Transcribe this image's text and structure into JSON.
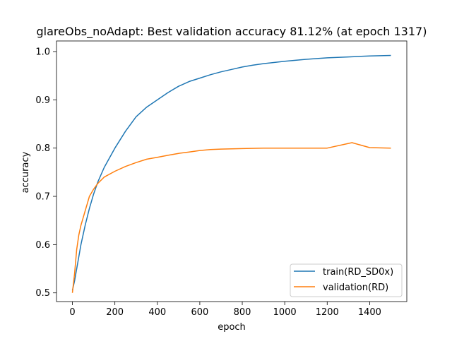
{
  "chart_data": {
    "type": "line",
    "title": "glareObs_noAdapt: Best validation accuracy 81.12% (at epoch 1317)",
    "xlabel": "epoch",
    "ylabel": "accuracy",
    "xlim": [
      -75,
      1575
    ],
    "ylim": [
      0.482,
      1.022
    ],
    "xticks": [
      0,
      200,
      400,
      600,
      800,
      1000,
      1200,
      1400
    ],
    "xtick_labels": [
      "0",
      "200",
      "400",
      "600",
      "800",
      "1000",
      "1200",
      "1400"
    ],
    "yticks": [
      0.5,
      0.6,
      0.7,
      0.8,
      0.9,
      1.0
    ],
    "ytick_labels": [
      "0.5",
      "0.6",
      "0.7",
      "0.8",
      "0.9",
      "1.0"
    ],
    "grid": false,
    "legend_position": "lower-right",
    "series": [
      {
        "name": "train(RD_SD0x)",
        "color": "#1f77b4",
        "x": [
          0,
          10,
          20,
          30,
          40,
          50,
          60,
          80,
          100,
          120,
          150,
          200,
          250,
          300,
          350,
          400,
          450,
          500,
          550,
          600,
          650,
          700,
          750,
          800,
          850,
          900,
          1000,
          1100,
          1200,
          1300,
          1400,
          1500
        ],
        "y": [
          0.505,
          0.525,
          0.55,
          0.575,
          0.6,
          0.62,
          0.64,
          0.675,
          0.705,
          0.73,
          0.76,
          0.8,
          0.835,
          0.865,
          0.885,
          0.9,
          0.915,
          0.928,
          0.938,
          0.945,
          0.952,
          0.958,
          0.963,
          0.968,
          0.972,
          0.975,
          0.98,
          0.984,
          0.987,
          0.989,
          0.991,
          0.992
        ]
      },
      {
        "name": "validation(RD)",
        "color": "#ff7f0e",
        "x": [
          0,
          10,
          20,
          30,
          40,
          50,
          60,
          70,
          80,
          100,
          120,
          150,
          200,
          250,
          300,
          350,
          400,
          450,
          500,
          550,
          600,
          650,
          700,
          800,
          900,
          1000,
          1100,
          1200,
          1317,
          1400,
          1500
        ],
        "y": [
          0.5,
          0.54,
          0.59,
          0.62,
          0.64,
          0.655,
          0.67,
          0.685,
          0.7,
          0.715,
          0.727,
          0.74,
          0.752,
          0.762,
          0.77,
          0.777,
          0.781,
          0.785,
          0.789,
          0.792,
          0.795,
          0.797,
          0.798,
          0.799,
          0.8,
          0.8,
          0.8,
          0.8,
          0.8112,
          0.801,
          0.8
        ]
      }
    ]
  }
}
